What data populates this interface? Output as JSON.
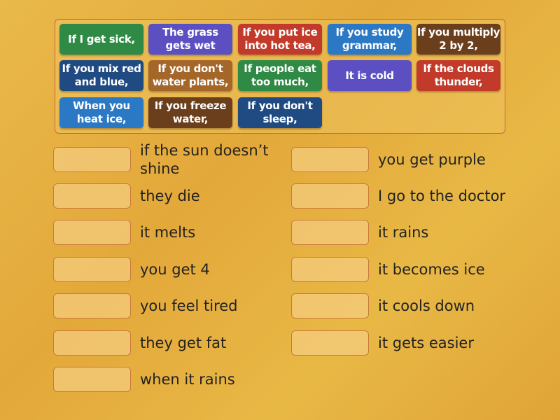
{
  "tiles": [
    {
      "label": "If I get sick,",
      "color": "#2f8a45"
    },
    {
      "label": "The grass gets wet",
      "color": "#5c4fc2"
    },
    {
      "label": "If you put ice into hot tea,",
      "color": "#c23a2a"
    },
    {
      "label": "If you study grammar,",
      "color": "#2b78c4"
    },
    {
      "label": "If you multiply 2 by 2,",
      "color": "#6b3e1c"
    },
    {
      "label": "If you mix red and blue,",
      "color": "#1f4a82"
    },
    {
      "label": "If you don't water plants,",
      "color": "#a5662a"
    },
    {
      "label": "If people eat too much,",
      "color": "#2f8a45"
    },
    {
      "label": "It is cold",
      "color": "#5c4fc2"
    },
    {
      "label": "If the clouds thunder,",
      "color": "#c23a2a"
    },
    {
      "label": "When you heat ice,",
      "color": "#2b78c4"
    },
    {
      "label": "If you freeze water,",
      "color": "#6b3e1c"
    },
    {
      "label": "If you don't sleep,",
      "color": "#1f4a82"
    }
  ],
  "left_answers": [
    "if the sun doesn’t shine",
    "they die",
    "it melts",
    "you get 4",
    "you feel tired",
    "they get fat",
    "when it rains"
  ],
  "right_answers": [
    "you get purple",
    "I go to the doctor",
    "it rains",
    "it becomes ice",
    "it cools down",
    "it gets easier"
  ]
}
